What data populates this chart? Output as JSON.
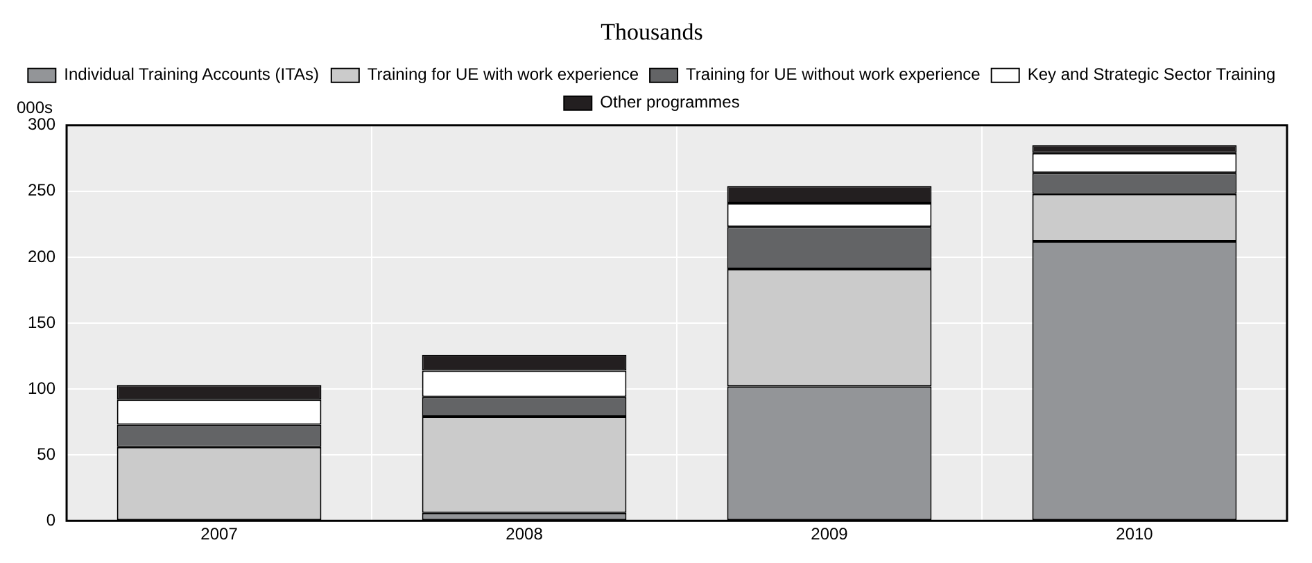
{
  "chart_data": {
    "type": "bar",
    "title": "Thousands",
    "ylabel": "000s",
    "categories": [
      "2007",
      "2008",
      "2009",
      "2010"
    ],
    "stacked": true,
    "series": [
      {
        "name": "Individual Training Accounts (ITAs)",
        "color": "#939598",
        "values": [
          0,
          6,
          102,
          212
        ]
      },
      {
        "name": "Training for UE with work experience",
        "color": "#cbcbcb",
        "values": [
          56,
          73,
          89,
          36
        ]
      },
      {
        "name": "Training for UE without work experience",
        "color": "#636466",
        "values": [
          17,
          15,
          32,
          16
        ]
      },
      {
        "name": "Key and Strategic Sector Training",
        "color": "#ffffff",
        "values": [
          19,
          20,
          18,
          15
        ]
      },
      {
        "name": "Other programmes",
        "color": "#231f20",
        "values": [
          11,
          12,
          13,
          6
        ]
      }
    ],
    "ylim": [
      0,
      300
    ],
    "yticks": [
      0,
      50,
      100,
      150,
      200,
      250,
      300
    ],
    "grid": true,
    "legend": "top"
  }
}
